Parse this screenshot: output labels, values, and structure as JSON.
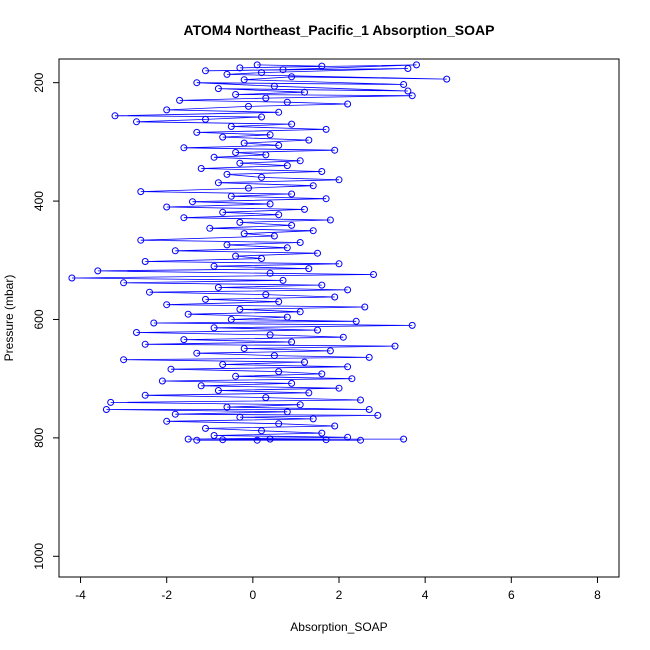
{
  "chart_data": {
    "type": "scatter",
    "title": "ATOM4 Northeast_Pacific_1 Absorption_SOAP",
    "xlabel": "Absorption_SOAP",
    "ylabel": "Pressure (mbar)",
    "xlim": [
      -4.5,
      8.5
    ],
    "ylim": [
      1035,
      160
    ],
    "y_inverted": true,
    "xticks": [
      -4,
      -2,
      0,
      2,
      4,
      6,
      8
    ],
    "yticks": [
      200,
      400,
      600,
      800,
      1000
    ],
    "grid": false,
    "legend": "none",
    "series_color": "#0000ff",
    "markers": "open-circle",
    "connected": true,
    "points": [
      [
        0.1,
        170
      ],
      [
        1.6,
        172
      ],
      [
        -0.3,
        175
      ],
      [
        3.8,
        170
      ],
      [
        0.7,
        178
      ],
      [
        -1.1,
        180
      ],
      [
        3.6,
        176
      ],
      [
        0.2,
        183
      ],
      [
        -0.6,
        186
      ],
      [
        4.5,
        194
      ],
      [
        0.9,
        190
      ],
      [
        -0.2,
        195
      ],
      [
        3.5,
        203
      ],
      [
        -1.3,
        200
      ],
      [
        0.5,
        206
      ],
      [
        3.6,
        214
      ],
      [
        -0.8,
        210
      ],
      [
        1.2,
        216
      ],
      [
        -0.4,
        220
      ],
      [
        3.7,
        222
      ],
      [
        0.3,
        226
      ],
      [
        -1.7,
        230
      ],
      [
        0.8,
        233
      ],
      [
        2.2,
        236
      ],
      [
        -0.1,
        240
      ],
      [
        -2.0,
        246
      ],
      [
        0.6,
        250
      ],
      [
        -3.2,
        256
      ],
      [
        0.2,
        258
      ],
      [
        -1.1,
        262
      ],
      [
        -2.7,
        266
      ],
      [
        0.9,
        270
      ],
      [
        -0.5,
        274
      ],
      [
        1.7,
        279
      ],
      [
        -1.3,
        284
      ],
      [
        0.4,
        288
      ],
      [
        -0.7,
        292
      ],
      [
        1.3,
        297
      ],
      [
        -0.2,
        302
      ],
      [
        0.6,
        306
      ],
      [
        -1.6,
        310
      ],
      [
        1.9,
        314
      ],
      [
        -0.4,
        318
      ],
      [
        0.3,
        322
      ],
      [
        -0.9,
        326
      ],
      [
        1.1,
        332
      ],
      [
        -0.3,
        336
      ],
      [
        0.8,
        340
      ],
      [
        -1.2,
        345
      ],
      [
        1.6,
        350
      ],
      [
        -0.6,
        355
      ],
      [
        0.2,
        360
      ],
      [
        2.0,
        364
      ],
      [
        -0.8,
        369
      ],
      [
        1.4,
        374
      ],
      [
        -0.1,
        378
      ],
      [
        -2.6,
        384
      ],
      [
        0.9,
        388
      ],
      [
        -0.5,
        392
      ],
      [
        1.7,
        396
      ],
      [
        -1.4,
        401
      ],
      [
        0.4,
        405
      ],
      [
        -2.0,
        410
      ],
      [
        1.2,
        414
      ],
      [
        -0.7,
        419
      ],
      [
        0.6,
        423
      ],
      [
        -1.6,
        428
      ],
      [
        1.8,
        432
      ],
      [
        -0.3,
        436
      ],
      [
        0.9,
        441
      ],
      [
        -1.0,
        446
      ],
      [
        1.4,
        450
      ],
      [
        -0.2,
        455
      ],
      [
        0.5,
        459
      ],
      [
        -2.6,
        466
      ],
      [
        1.1,
        470
      ],
      [
        -0.6,
        474
      ],
      [
        0.8,
        479
      ],
      [
        -1.8,
        484
      ],
      [
        1.5,
        488
      ],
      [
        -0.4,
        493
      ],
      [
        0.2,
        497
      ],
      [
        -2.5,
        502
      ],
      [
        2.0,
        506
      ],
      [
        -0.9,
        510
      ],
      [
        1.3,
        514
      ],
      [
        -3.6,
        518
      ],
      [
        0.4,
        522
      ],
      [
        2.8,
        524
      ],
      [
        -4.2,
        530
      ],
      [
        0.7,
        534
      ],
      [
        -3.0,
        538
      ],
      [
        1.6,
        542
      ],
      [
        -0.8,
        546
      ],
      [
        2.2,
        550
      ],
      [
        -2.4,
        554
      ],
      [
        0.3,
        558
      ],
      [
        1.9,
        562
      ],
      [
        -1.1,
        566
      ],
      [
        0.6,
        570
      ],
      [
        -2.0,
        575
      ],
      [
        2.6,
        579
      ],
      [
        -0.3,
        583
      ],
      [
        1.1,
        587
      ],
      [
        -1.5,
        591
      ],
      [
        0.8,
        596
      ],
      [
        -0.5,
        600
      ],
      [
        2.4,
        603
      ],
      [
        -2.3,
        606
      ],
      [
        3.7,
        610
      ],
      [
        -0.9,
        614
      ],
      [
        1.5,
        618
      ],
      [
        -2.7,
        622
      ],
      [
        0.4,
        626
      ],
      [
        2.1,
        630
      ],
      [
        -1.6,
        634
      ],
      [
        0.9,
        638
      ],
      [
        -2.5,
        642
      ],
      [
        3.3,
        645
      ],
      [
        -0.2,
        649
      ],
      [
        1.8,
        653
      ],
      [
        -1.3,
        657
      ],
      [
        0.5,
        661
      ],
      [
        2.7,
        664
      ],
      [
        -3.0,
        668
      ],
      [
        1.2,
        672
      ],
      [
        -0.7,
        676
      ],
      [
        2.2,
        680
      ],
      [
        -1.9,
        684
      ],
      [
        0.6,
        688
      ],
      [
        1.6,
        692
      ],
      [
        -0.4,
        696
      ],
      [
        2.3,
        700
      ],
      [
        -2.1,
        704
      ],
      [
        0.9,
        708
      ],
      [
        -1.2,
        712
      ],
      [
        2.0,
        716
      ],
      [
        -0.8,
        720
      ],
      [
        1.3,
        724
      ],
      [
        -2.5,
        728
      ],
      [
        0.3,
        732
      ],
      [
        2.5,
        736
      ],
      [
        -3.3,
        740
      ],
      [
        1.1,
        744
      ],
      [
        -0.6,
        748
      ],
      [
        2.7,
        752
      ],
      [
        -3.4,
        752
      ],
      [
        0.8,
        756
      ],
      [
        -1.8,
        760
      ],
      [
        2.9,
        762
      ],
      [
        -0.3,
        765
      ],
      [
        1.4,
        768
      ],
      [
        -2.0,
        772
      ],
      [
        0.6,
        776
      ],
      [
        1.9,
        780
      ],
      [
        -1.1,
        784
      ],
      [
        0.2,
        788
      ],
      [
        1.6,
        792
      ],
      [
        -0.9,
        796
      ],
      [
        2.2,
        799
      ],
      [
        -1.5,
        802
      ],
      [
        3.5,
        802
      ],
      [
        0.4,
        802
      ],
      [
        -0.7,
        803
      ],
      [
        1.7,
        803
      ],
      [
        -1.3,
        804
      ],
      [
        2.5,
        804
      ],
      [
        0.1,
        804
      ]
    ]
  }
}
